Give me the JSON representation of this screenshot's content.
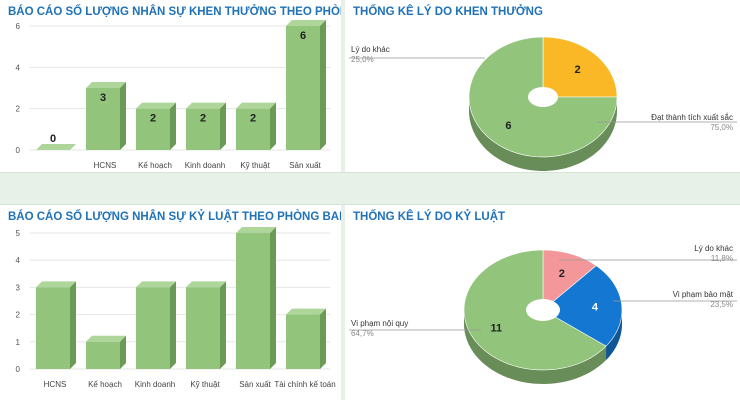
{
  "panels": {
    "reward_by_dept": {
      "title": "BÁO CÁO SỐ LƯỢNG NHÂN SỰ KHEN THƯỞNG THEO PHÒNG BAN"
    },
    "reward_reasons": {
      "title": "THỐNG KÊ LÝ DO KHEN THƯỞNG"
    },
    "discipline_by_dept": {
      "title": "BÁO CÁO SỐ LƯỢNG NHÂN SỰ KỶ LUẬT THEO PHÒNG BAN"
    },
    "discipline_reasons": {
      "title": "THỐNG KÊ LÝ DO KỶ LUẬT"
    }
  },
  "colors": {
    "title": "#1f72b8",
    "bar": "#92c47c",
    "bar_dark": "#6a9a56",
    "green": "#92c47c",
    "orange": "#fbb826",
    "pink": "#f4979a",
    "blue": "#1477d1"
  },
  "chart_data": [
    {
      "type": "bar",
      "title": "BÁO CÁO SỐ LƯỢNG NHÂN SỰ KHEN THƯỞNG THEO PHÒNG BAN",
      "categories": [
        "",
        "HCNS",
        "Kế hoạch",
        "Kinh doanh",
        "Kỹ thuật",
        "Sản xuất"
      ],
      "values": [
        0,
        3,
        2,
        2,
        2,
        6
      ],
      "ylim": [
        0,
        6
      ],
      "yticks": [
        "0",
        "2",
        "4",
        "6"
      ],
      "data_labels": true,
      "grid": true
    },
    {
      "type": "pie",
      "title": "THỐNG KÊ LÝ DO KHEN THƯỞNG",
      "slices": [
        {
          "label": "Lý do khác",
          "value": 2,
          "percent": "25,0%",
          "color": "#fbb826"
        },
        {
          "label": "Đạt thành tích xuất sắc",
          "value": 6,
          "percent": "75,0%",
          "color": "#92c47c"
        }
      ],
      "donut": true
    },
    {
      "type": "bar",
      "title": "BÁO CÁO SỐ LƯỢNG NHÂN SỰ KỶ LUẬT THEO PHÒNG BAN",
      "categories": [
        "HCNS",
        "Kế hoạch",
        "Kinh doanh",
        "Kỹ thuật",
        "Sản xuất",
        "Tài chính kế toán"
      ],
      "values": [
        3,
        1,
        3,
        3,
        5,
        2
      ],
      "ylim": [
        0,
        5
      ],
      "yticks": [
        "0",
        "1",
        "2",
        "3",
        "4",
        "5"
      ],
      "data_labels": false,
      "grid": true
    },
    {
      "type": "pie",
      "title": "THỐNG KÊ LÝ DO KỶ LUẬT",
      "slices": [
        {
          "label": "Lý do khác",
          "value": 2,
          "percent": "11,8%",
          "color": "#f4979a"
        },
        {
          "label": "Vi phạm bảo mật",
          "value": 4,
          "percent": "23,5%",
          "color": "#1477d1"
        },
        {
          "label": "Vi phạm nội quy",
          "value": 11,
          "percent": "64,7%",
          "color": "#92c47c"
        }
      ],
      "donut": true
    }
  ]
}
